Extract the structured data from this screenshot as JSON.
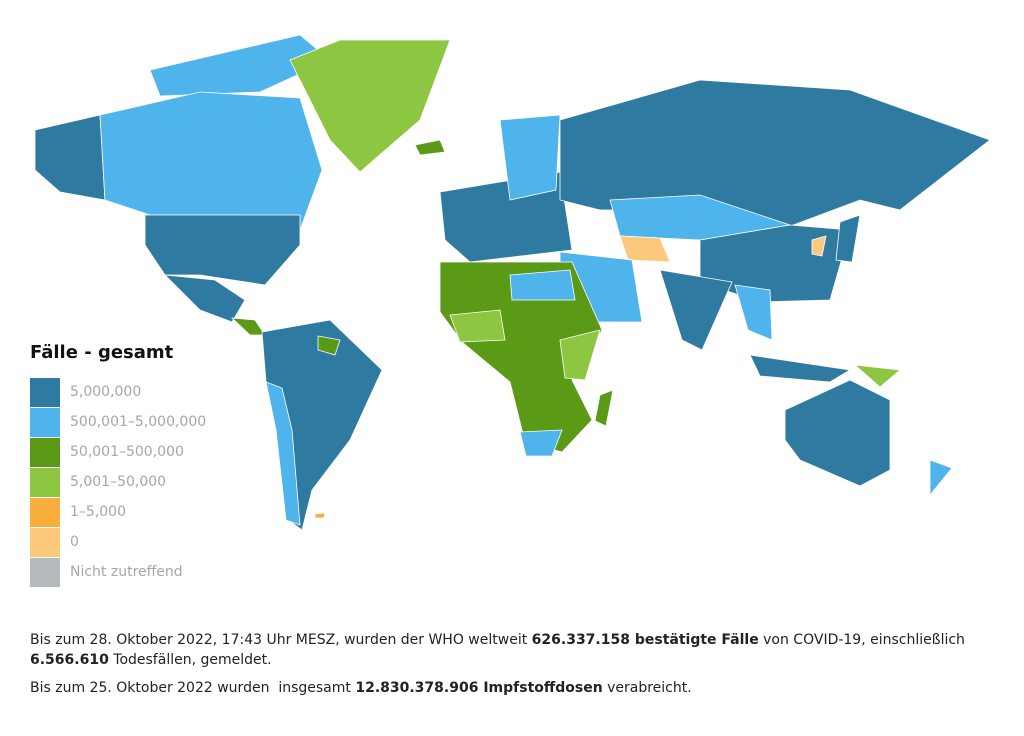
{
  "legend": {
    "title": "Fälle - gesamt",
    "items": [
      {
        "label": "5,000,000",
        "color": "#2e7aa1"
      },
      {
        "label": "500,001–5,000,000",
        "color": "#4fb3ec"
      },
      {
        "label": "50,001–500,000",
        "color": "#5b9a17"
      },
      {
        "label": "5,001–50,000",
        "color": "#8dc641"
      },
      {
        "label": "1–5,000",
        "color": "#f8ae3c"
      },
      {
        "label": "0",
        "color": "#fcc97c"
      },
      {
        "label": "Nicht zutreffend",
        "color": "#b5babd"
      }
    ]
  },
  "notes": [
    {
      "parts": [
        {
          "text": "Bis zum 28. Oktober 2022, 17:43 Uhr MESZ, wurden der WHO weltweit ",
          "bold": false
        },
        {
          "text": "626.337.158 bestätigte Fälle",
          "bold": true
        },
        {
          "text": " von COVID-19, einschließlich ",
          "bold": false
        },
        {
          "text": "6.566.610",
          "bold": true
        },
        {
          "text": " Todesfällen, gemeldet.",
          "bold": false
        }
      ]
    },
    {
      "parts": [
        {
          "text": "Bis zum 25. Oktober 2022 wurden  insgesamt ",
          "bold": false
        },
        {
          "text": "12.830.378.906 Impfstoffdosen",
          "bold": true
        },
        {
          "text": " verabreicht.",
          "bold": false
        }
      ]
    }
  ]
}
